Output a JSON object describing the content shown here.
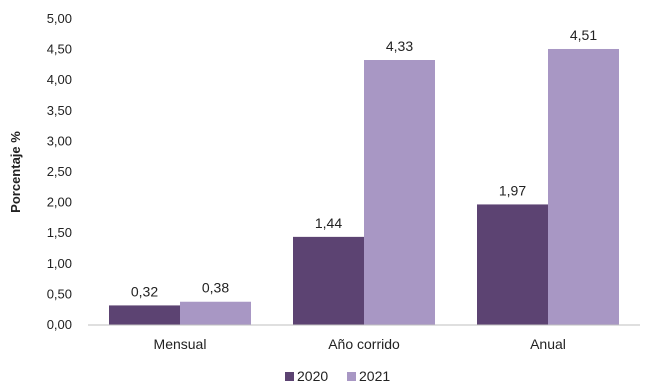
{
  "chart_data": {
    "type": "bar",
    "categories": [
      "Mensual",
      "Año corrido",
      "Anual"
    ],
    "series": [
      {
        "name": "2020",
        "values": [
          0.32,
          1.44,
          1.97
        ],
        "color": "#5c4372"
      },
      {
        "name": "2021",
        "values": [
          0.38,
          4.33,
          4.51
        ],
        "color": "#a897c4"
      }
    ],
    "data_labels": [
      [
        "0,32",
        "1,44",
        "1,97"
      ],
      [
        "0,38",
        "4,33",
        "4,51"
      ]
    ],
    "ylabel": "Porcentaje %",
    "xlabel": "",
    "ylim": [
      0,
      5
    ],
    "yticks": [
      0,
      0.5,
      1,
      1.5,
      2,
      2.5,
      3,
      3.5,
      4,
      4.5,
      5
    ],
    "ytick_labels": [
      "0,00",
      "0,50",
      "1,00",
      "1,50",
      "2,00",
      "2,50",
      "3,00",
      "3,50",
      "4,00",
      "4,50",
      "5,00"
    ],
    "grid": false,
    "legend_position": "bottom"
  }
}
